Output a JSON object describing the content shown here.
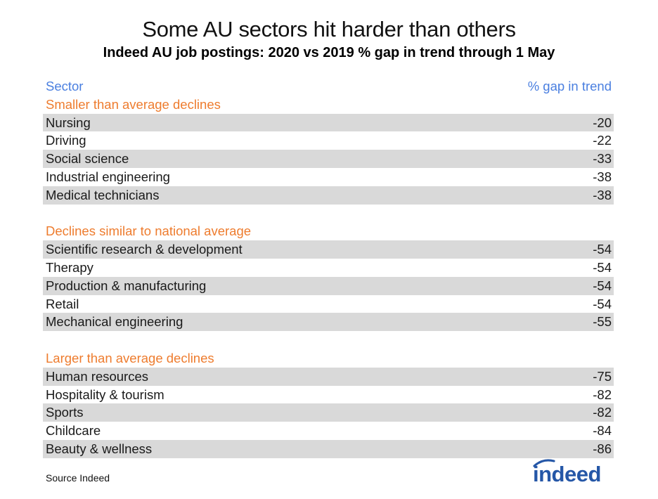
{
  "title": "Some AU sectors hit harder than others",
  "subtitle": "Indeed AU job postings: 2020 vs 2019 % gap in trend through 1 May",
  "source": "Source Indeed",
  "logo_text": "indeed",
  "colors": {
    "header": "#4a7fe0",
    "group": "#ee7c2e",
    "shade": "#d9d9d9",
    "logo": "#2557a7"
  },
  "chart_data": {
    "type": "table",
    "columns": [
      "Sector",
      "% gap in trend"
    ],
    "groups": [
      {
        "name": "Smaller than average declines",
        "rows": [
          {
            "sector": "Nursing",
            "value": "-20"
          },
          {
            "sector": "Driving",
            "value": "-22"
          },
          {
            "sector": "Social science",
            "value": "-33"
          },
          {
            "sector": "Industrial engineering",
            "value": "-38"
          },
          {
            "sector": "Medical technicians",
            "value": "-38"
          }
        ]
      },
      {
        "name": "Declines similar to national average",
        "rows": [
          {
            "sector": "Scientific research & development",
            "value": "-54"
          },
          {
            "sector": "Therapy",
            "value": "-54"
          },
          {
            "sector": "Production & manufacturing",
            "value": "-54"
          },
          {
            "sector": "Retail",
            "value": "-54"
          },
          {
            "sector": "Mechanical engineering",
            "value": "-55"
          }
        ]
      },
      {
        "name": "Larger than average declines",
        "rows": [
          {
            "sector": "Human resources",
            "value": "-75"
          },
          {
            "sector": "Hospitality & tourism",
            "value": "-82"
          },
          {
            "sector": "Sports",
            "value": "-82"
          },
          {
            "sector": "Childcare",
            "value": "-84"
          },
          {
            "sector": "Beauty & wellness",
            "value": "-86"
          }
        ]
      }
    ]
  }
}
